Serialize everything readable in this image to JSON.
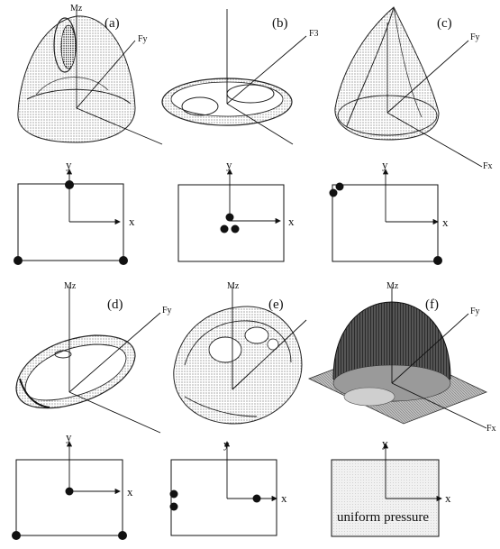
{
  "panels": [
    {
      "id": "a",
      "label": "(a)",
      "z": "Mz",
      "y": "Fy",
      "x": ""
    },
    {
      "id": "b",
      "label": "(b)",
      "z": "",
      "y": "F3",
      "x": ""
    },
    {
      "id": "c",
      "label": "(c)",
      "z": "",
      "y": "Fy",
      "x": "Fx"
    },
    {
      "id": "d",
      "label": "(d)",
      "z": "Mz",
      "y": "Fy",
      "x": ""
    },
    {
      "id": "e",
      "label": "(e)",
      "z": "Mz",
      "y": "",
      "x": ""
    },
    {
      "id": "f",
      "label": "(f)",
      "z": "Mz",
      "y": "Fy",
      "x": "Fx"
    }
  ],
  "footprint_axes": {
    "x": "x",
    "y": "y"
  },
  "uniform_label": "uniform pressure"
}
